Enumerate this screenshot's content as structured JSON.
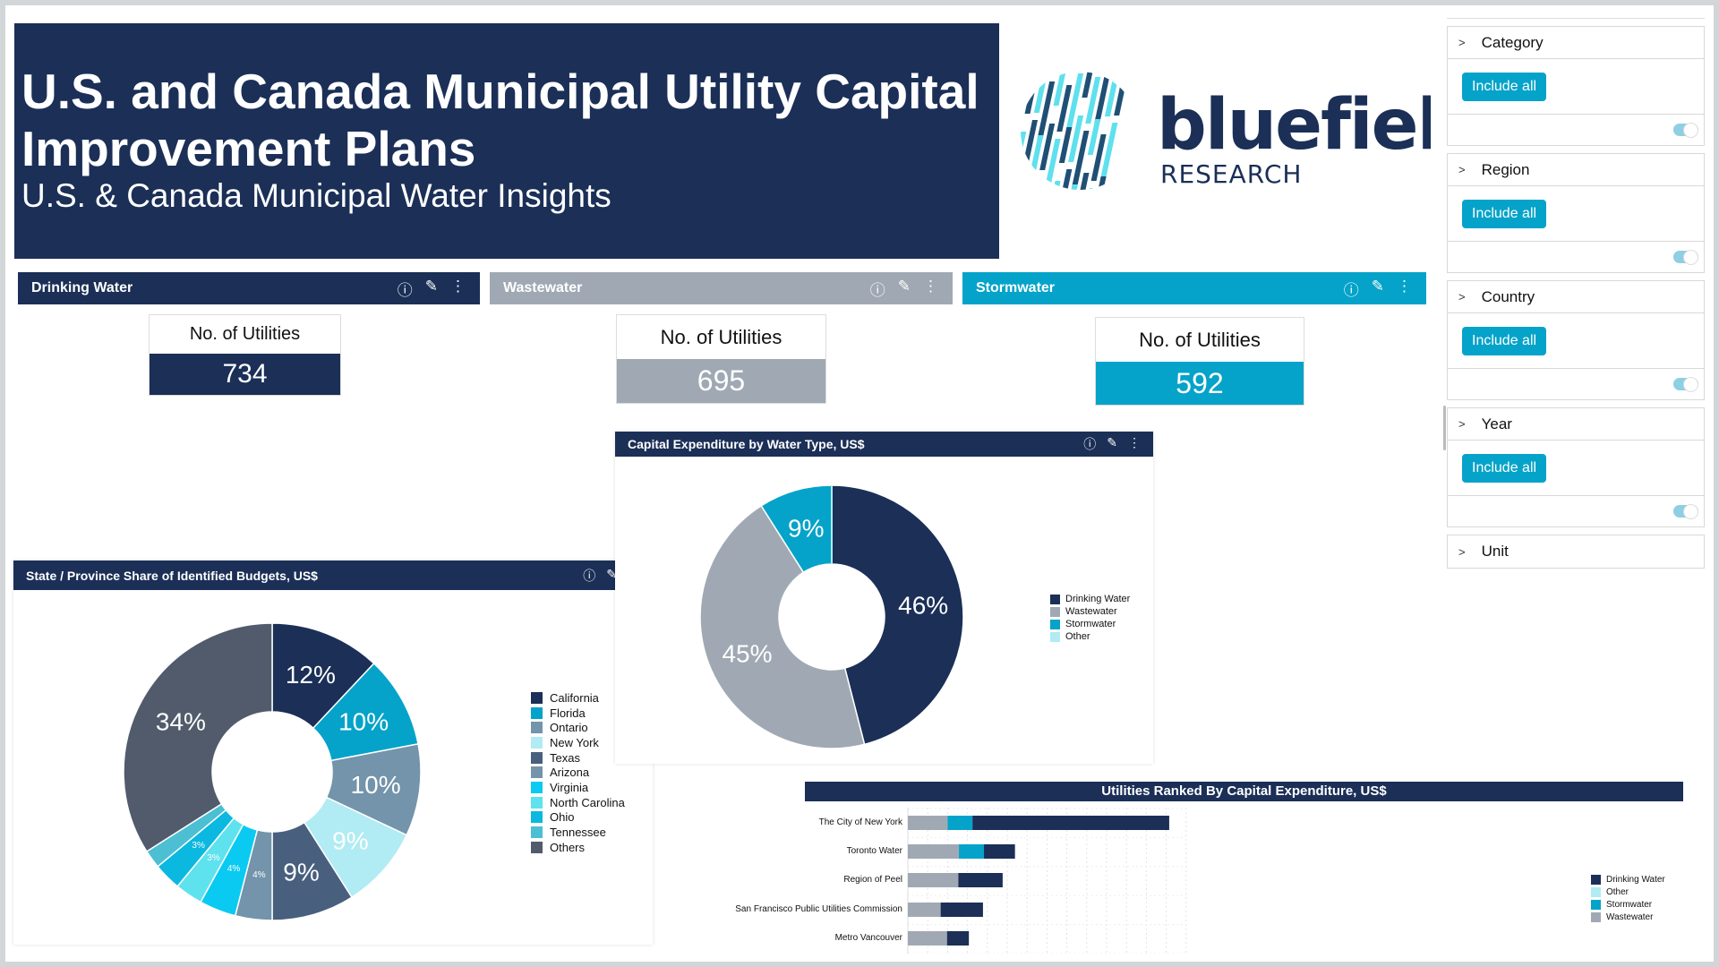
{
  "header": {
    "title": "U.S. and Canada Municipal Utility Capital Improvement Plans",
    "subtitle": "U.S. & Canada Municipal Water Insights"
  },
  "logo": {
    "name": "bluefield",
    "tagline": "RESEARCH"
  },
  "filters": [
    {
      "label": "Category",
      "button": "Include all",
      "toggle_on": true
    },
    {
      "label": "Region",
      "button": "Include all",
      "toggle_on": true
    },
    {
      "label": "Country",
      "button": "Include all",
      "toggle_on": true
    },
    {
      "label": "Year",
      "button": "Include all",
      "toggle_on": true
    },
    {
      "label": "Unit"
    }
  ],
  "kpis": [
    {
      "title": "Drinking Water",
      "label": "No. of Utilities",
      "value": "734",
      "color": "#1b2f57"
    },
    {
      "title": "Wastewater",
      "label": "No. of Utilities",
      "value": "695",
      "color": "#a0a9b3"
    },
    {
      "title": "Stormwater",
      "label": "No. of Utilities",
      "value": "592",
      "color": "#05a3c9"
    }
  ],
  "icons": {
    "info": "i",
    "edit": "✎",
    "more": "⋮"
  },
  "chart_data": [
    {
      "type": "pie",
      "title": "Capital Expenditure by Water Type, US$",
      "categories": [
        "Drinking Water",
        "Wastewater",
        "Stormwater",
        "Other"
      ],
      "values": [
        46,
        45,
        9,
        0
      ],
      "labels": [
        "46%",
        "45%",
        "9%",
        ""
      ],
      "colors": [
        "#1b2f57",
        "#a0a9b3",
        "#05a3c9",
        "#b1ebf3"
      ],
      "donut": true,
      "legend": "right"
    },
    {
      "type": "pie",
      "title": "State / Province Share of Identified Budgets, US$",
      "categories": [
        "California",
        "Florida",
        "Ontario",
        "New York",
        "Texas",
        "Arizona",
        "Virginia",
        "North Carolina",
        "Ohio",
        "Tennessee",
        "Others"
      ],
      "values": [
        12,
        10,
        10,
        9,
        9,
        4,
        4,
        3,
        3,
        2,
        34
      ],
      "labels": [
        "12%",
        "10%",
        "10%",
        "9%",
        "9%",
        "4%",
        "4%",
        "3%",
        "3%",
        "",
        "34%"
      ],
      "colors": [
        "#1b2f57",
        "#05a3c9",
        "#7394aa",
        "#b1ebf3",
        "#485f7e",
        "#7394aa",
        "#0acaf2",
        "#5ee2ee",
        "#0bb8e0",
        "#4cbfd3",
        "#515b6b"
      ],
      "donut": true,
      "legend": "right"
    },
    {
      "type": "bar",
      "orientation": "horizontal",
      "stacked": true,
      "title": "Utilities Ranked By Capital Expenditure, US$",
      "categories": [
        "The City of New York",
        "Toronto Water",
        "Region of Peel",
        "San Francisco Public Utilities Commission",
        "Metro Vancouver"
      ],
      "series": [
        {
          "name": "Wastewater",
          "color": "#a0a9b3",
          "values": [
            2.0,
            2.57,
            2.54,
            1.65,
            1.97
          ]
        },
        {
          "name": "Stormwater",
          "color": "#05a3c9",
          "values": [
            1.25,
            1.26,
            0,
            0,
            0
          ]
        },
        {
          "name": "Other",
          "color": "#b1ebf3",
          "values": [
            0,
            0,
            0,
            0,
            0
          ]
        },
        {
          "name": "Drinking Water",
          "color": "#1b2f57",
          "values": [
            9.9,
            1.56,
            2.23,
            2.13,
            1.1
          ]
        }
      ],
      "legend_order": [
        "Drinking Water",
        "Other",
        "Stormwater",
        "Wastewater"
      ],
      "xlim": [
        0,
        14
      ],
      "grid": true,
      "legend": "right"
    }
  ]
}
